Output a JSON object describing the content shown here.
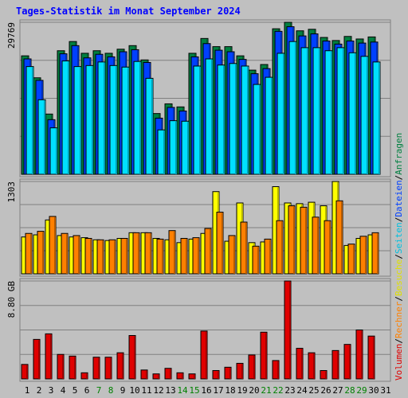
{
  "chart_data": [
    {
      "type": "bar",
      "title": "Tages-Statistik im Monat September 2024",
      "ylabel_max": "29769",
      "ylim": [
        0,
        29769
      ],
      "categories": [
        "1",
        "2",
        "3",
        "4",
        "5",
        "6",
        "7",
        "8",
        "9",
        "10",
        "11",
        "12",
        "13",
        "14",
        "15",
        "16",
        "17",
        "18",
        "19",
        "20",
        "21",
        "22",
        "23",
        "24",
        "25",
        "26",
        "27",
        "28",
        "29",
        "30",
        "31"
      ],
      "weekend_days": [
        "7",
        "8",
        "14",
        "15",
        "21",
        "22",
        "28",
        "29"
      ],
      "series": [
        {
          "name": "Anfragen",
          "color": "#008040",
          "values": [
            23200,
            18900,
            11800,
            24200,
            26000,
            23700,
            24200,
            23700,
            24500,
            25200,
            22400,
            11900,
            13800,
            13200,
            23700,
            26600,
            25000,
            25000,
            23200,
            20400,
            21500,
            28500,
            29769,
            28100,
            28400,
            26800,
            26200,
            27000,
            26500,
            26900,
            null
          ]
        },
        {
          "name": "Dateien",
          "color": "#0040ff",
          "values": [
            22600,
            18400,
            10700,
            23600,
            25200,
            22800,
            23500,
            23000,
            24000,
            24400,
            21900,
            11000,
            13100,
            12400,
            23000,
            25600,
            24300,
            24000,
            22500,
            19700,
            20700,
            28000,
            28900,
            27100,
            27500,
            26100,
            25500,
            26100,
            25700,
            25900,
            null
          ]
        },
        {
          "name": "Seiten",
          "color": "#00e0ff",
          "values": [
            21100,
            14600,
            9100,
            22200,
            21100,
            21300,
            22000,
            21300,
            21000,
            22100,
            18800,
            8700,
            10500,
            10400,
            21200,
            22600,
            21400,
            21700,
            21200,
            17600,
            19000,
            23700,
            26000,
            24800,
            24800,
            24200,
            24800,
            23800,
            23100,
            22000,
            null
          ]
        }
      ]
    },
    {
      "type": "bar",
      "ylabel_max": "1303",
      "ylim": [
        0,
        1303
      ],
      "categories": [
        "1",
        "2",
        "3",
        "4",
        "5",
        "6",
        "7",
        "8",
        "9",
        "10",
        "11",
        "12",
        "13",
        "14",
        "15",
        "16",
        "17",
        "18",
        "19",
        "20",
        "21",
        "22",
        "23",
        "24",
        "25",
        "26",
        "27",
        "28",
        "29",
        "30",
        "31"
      ],
      "series": [
        {
          "name": "Besuche",
          "color": "#ffff00",
          "values": [
            520,
            550,
            760,
            540,
            520,
            510,
            480,
            470,
            500,
            580,
            580,
            500,
            480,
            440,
            490,
            570,
            1160,
            460,
            1000,
            440,
            450,
            1230,
            1000,
            990,
            1010,
            960,
            1303,
            400,
            500,
            550,
            null
          ]
        },
        {
          "name": "Rechner",
          "color": "#ff8000",
          "values": [
            570,
            600,
            810,
            570,
            540,
            500,
            480,
            480,
            500,
            580,
            580,
            490,
            610,
            500,
            510,
            640,
            870,
            540,
            730,
            390,
            490,
            750,
            960,
            940,
            800,
            750,
            1030,
            420,
            530,
            580,
            null
          ]
        }
      ]
    },
    {
      "type": "bar",
      "ylabel_max": "8.80 GB",
      "ylim": [
        0,
        8.8
      ],
      "categories": [
        "1",
        "2",
        "3",
        "4",
        "5",
        "6",
        "7",
        "8",
        "9",
        "10",
        "11",
        "12",
        "13",
        "14",
        "15",
        "16",
        "17",
        "18",
        "19",
        "20",
        "21",
        "22",
        "23",
        "24",
        "25",
        "26",
        "27",
        "28",
        "29",
        "30",
        "31"
      ],
      "series": [
        {
          "name": "Volumen",
          "color": "#e00000",
          "values": [
            1.3,
            3.55,
            4.05,
            2.2,
            2.05,
            0.55,
            1.95,
            1.95,
            2.35,
            3.9,
            0.8,
            0.45,
            0.95,
            0.55,
            0.45,
            4.3,
            0.75,
            1.05,
            1.4,
            2.15,
            4.2,
            1.65,
            8.8,
            2.75,
            2.35,
            0.75,
            2.55,
            3.1,
            4.4,
            3.85,
            null
          ]
        }
      ]
    }
  ],
  "right_legend": [
    {
      "text": "Volumen",
      "color": "#e00000"
    },
    {
      "text": "/",
      "color": "#000000"
    },
    {
      "text": "Rechner",
      "color": "#ff8000"
    },
    {
      "text": "/",
      "color": "#000000"
    },
    {
      "text": "Besuche",
      "color": "#e0e000"
    },
    {
      "text": "/",
      "color": "#000000"
    },
    {
      "text": "Seiten",
      "color": "#00c0e0"
    },
    {
      "text": "/",
      "color": "#000000"
    },
    {
      "text": "Dateien",
      "color": "#0040ff"
    },
    {
      "text": "/",
      "color": "#000000"
    },
    {
      "text": "Anfragen",
      "color": "#008040"
    }
  ],
  "colors": {
    "background": "#c0c0c0",
    "plot_background": "#c0c0c0",
    "title": "#0000ff",
    "weekend_label": "#008000",
    "weekday_label": "#000000",
    "outline": "#000000"
  }
}
